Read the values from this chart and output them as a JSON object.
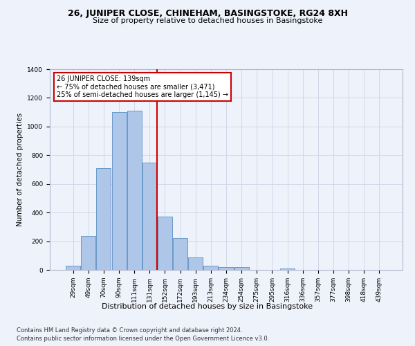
{
  "title": "26, JUNIPER CLOSE, CHINEHAM, BASINGSTOKE, RG24 8XH",
  "subtitle": "Size of property relative to detached houses in Basingstoke",
  "xlabel": "Distribution of detached houses by size in Basingstoke",
  "ylabel": "Number of detached properties",
  "footnote1": "Contains HM Land Registry data © Crown copyright and database right 2024.",
  "footnote2": "Contains public sector information licensed under the Open Government Licence v3.0.",
  "bar_labels": [
    "29sqm",
    "49sqm",
    "70sqm",
    "90sqm",
    "111sqm",
    "131sqm",
    "152sqm",
    "172sqm",
    "193sqm",
    "213sqm",
    "234sqm",
    "254sqm",
    "275sqm",
    "295sqm",
    "316sqm",
    "336sqm",
    "357sqm",
    "377sqm",
    "398sqm",
    "418sqm",
    "439sqm"
  ],
  "bar_values": [
    30,
    235,
    710,
    1100,
    1110,
    750,
    370,
    220,
    85,
    30,
    20,
    18,
    0,
    0,
    10,
    0,
    0,
    0,
    0,
    0,
    0
  ],
  "bar_color": "#aec6e8",
  "bar_edge_color": "#5a8fc4",
  "grid_color": "#d0d8e8",
  "property_label": "26 JUNIPER CLOSE: 139sqm",
  "annotation_line1": "← 75% of detached houses are smaller (3,471)",
  "annotation_line2": "25% of semi-detached houses are larger (1,145) →",
  "vline_x_index": 5.47,
  "vline_color": "#cc0000",
  "annotation_box_color": "#ffffff",
  "annotation_border_color": "#cc0000",
  "ylim": [
    0,
    1400
  ],
  "yticks": [
    0,
    200,
    400,
    600,
    800,
    1000,
    1200,
    1400
  ],
  "background_color": "#eef2fb",
  "axes_background": "#eef2fb",
  "title_fontsize": 9,
  "subtitle_fontsize": 8,
  "ylabel_fontsize": 7.5,
  "xlabel_fontsize": 8,
  "tick_fontsize": 6.5,
  "annot_fontsize": 7,
  "footnote_fontsize": 6
}
